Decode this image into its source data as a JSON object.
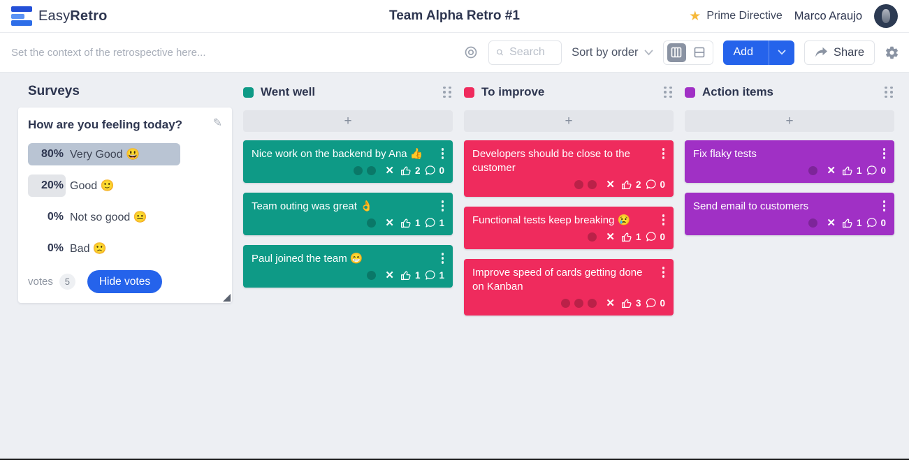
{
  "topbar": {
    "logo_easy": "Easy",
    "logo_retro": "Retro",
    "board_title": "Team Alpha Retro #1",
    "prime_directive_label": "Prime Directive",
    "user_name": "Marco Araujo"
  },
  "toolbar": {
    "context_placeholder": "Set the context of the retrospective here...",
    "search_placeholder": "Search",
    "sort_label": "Sort by order",
    "add_label": "Add",
    "share_label": "Share"
  },
  "surveys": {
    "heading": "Surveys",
    "question": "How are you feeling today?",
    "options": [
      {
        "percent": 80,
        "percent_label": "80%",
        "label": "Very Good 😃",
        "bar_color": "#b9c4d3"
      },
      {
        "percent": 20,
        "percent_label": "20%",
        "label": "Good 🙂",
        "bar_color": "#e3e5e9"
      },
      {
        "percent": 0,
        "percent_label": "0%",
        "label": "Not so good 😐",
        "bar_color": "#e3e5e9"
      },
      {
        "percent": 0,
        "percent_label": "0%",
        "label": "Bad 🙁",
        "bar_color": "#e3e5e9"
      }
    ],
    "votes_label": "votes",
    "votes_count": "5",
    "hide_votes_label": "Hide votes"
  },
  "board": {
    "add_card_label": "+",
    "columns": [
      {
        "name": "Went well",
        "color": "#0e9a86",
        "cards": [
          {
            "text": "Nice work on the backend by Ana 👍",
            "dots": 2,
            "likes": "2",
            "comments": "0"
          },
          {
            "text": "Team outing was great 👌",
            "dots": 1,
            "likes": "1",
            "comments": "1"
          },
          {
            "text": "Paul joined the team 😁",
            "dots": 1,
            "likes": "1",
            "comments": "1"
          }
        ]
      },
      {
        "name": "To improve",
        "color": "#ef2b5d",
        "cards": [
          {
            "text": "Developers should be close to the customer",
            "dots": 2,
            "likes": "2",
            "comments": "0"
          },
          {
            "text": "Functional tests keep breaking 😢",
            "dots": 1,
            "likes": "1",
            "comments": "0"
          },
          {
            "text": "Improve speed of cards getting done on Kanban",
            "dots": 3,
            "likes": "3",
            "comments": "0"
          }
        ]
      },
      {
        "name": "Action items",
        "color": "#a030c5",
        "cards": [
          {
            "text": "Fix flaky tests",
            "dots": 1,
            "likes": "1",
            "comments": "0"
          },
          {
            "text": "Send email to customers",
            "dots": 1,
            "likes": "1",
            "comments": "0"
          }
        ]
      }
    ]
  },
  "colors": {
    "primary_blue": "#2563eb",
    "star_gold": "#f6b93b",
    "board_background": "#edeff3"
  }
}
